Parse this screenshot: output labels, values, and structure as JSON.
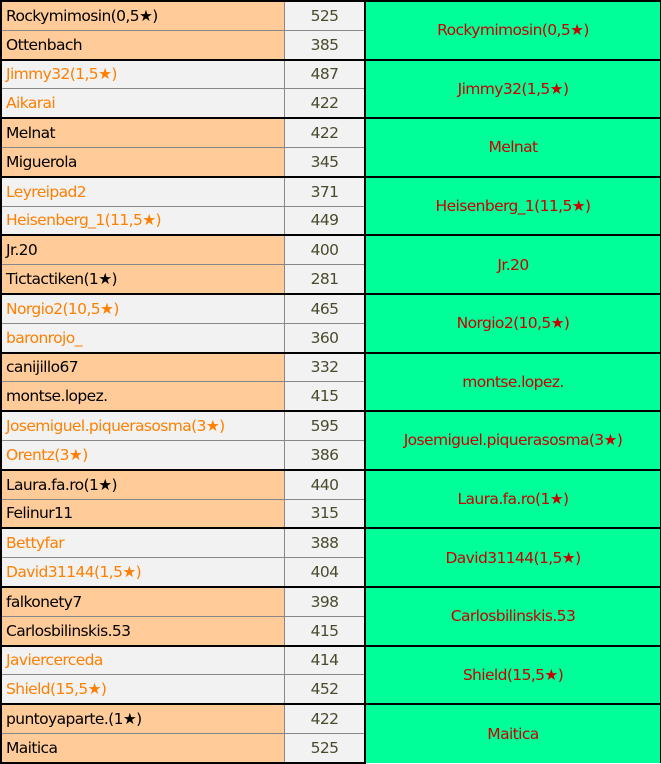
{
  "matches": [
    {
      "p1": "Rockymimosin(0,5★)",
      "s1": "525",
      "p2": "Ottenbach",
      "s2": "385",
      "winner": "Rockymimosin(0,5★)"
    },
    {
      "p1": "Jimmy32(1,5★)",
      "s1": "487",
      "p2": "Aikarai",
      "s2": "422",
      "winner": "Jimmy32(1,5★)"
    },
    {
      "p1": "Melnat",
      "s1": "422",
      "p2": "Miguerola",
      "s2": "345",
      "winner": "Melnat"
    },
    {
      "p1": "Leyreipad2",
      "s1": "371",
      "p2": "Heisenberg_1(11,5★)",
      "s2": "449",
      "winner": "Heisenberg_1(11,5★)"
    },
    {
      "p1": "Jr.20",
      "s1": "400",
      "p2": "Tictactiken(1★)",
      "s2": "281",
      "winner": "Jr.20"
    },
    {
      "p1": "Norgio2(10,5★)",
      "s1": "465",
      "p2": "baronrojo_",
      "s2": "360",
      "winner": "Norgio2(10,5★)"
    },
    {
      "p1": "canijillo67",
      "s1": "332",
      "p2": "montse.lopez.",
      "s2": "415",
      "winner": "montse.lopez."
    },
    {
      "p1": "Josemiguel.piquerasosma(3★)",
      "s1": "595",
      "p2": "Orentz(3★)",
      "s2": "386",
      "winner": "Josemiguel.piquerasosma(3★)"
    },
    {
      "p1": "Laura.fa.ro(1★)",
      "s1": "440",
      "p2": "Felinur11",
      "s2": "315",
      "winner": "Laura.fa.ro(1★)"
    },
    {
      "p1": "Bettyfar",
      "s1": "388",
      "p2": "David31144(1,5★)",
      "s2": "404",
      "winner": "David31144(1,5★)"
    },
    {
      "p1": "falkonety7",
      "s1": "398",
      "p2": "Carlosbilinskis.53",
      "s2": "415",
      "winner": "Carlosbilinskis.53"
    },
    {
      "p1": "Javiercerceda",
      "s1": "414",
      "p2": "Shield(15,5★)",
      "s2": "452",
      "winner": "Shield(15,5★)"
    },
    {
      "p1": "puntoyaparte.(1★)",
      "s1": "422",
      "p2": "Maitica",
      "s2": "525",
      "winner": "Maitica"
    }
  ],
  "colors": {
    "name_bg_a": "#ffcc99",
    "name_bg_b": "#f2f2f2",
    "name_text_b": "#ff7f00",
    "winner_bg": "#00ff99",
    "winner_text": "#cc0000",
    "score_text": "#4a4a2e"
  }
}
